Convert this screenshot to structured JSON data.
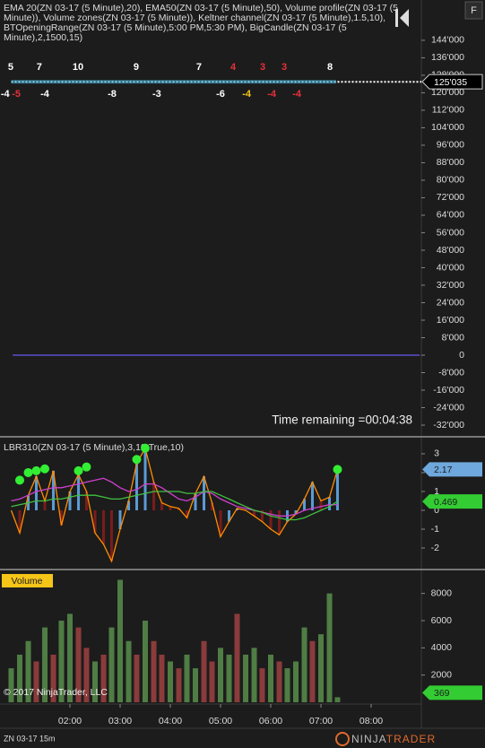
{
  "window": {
    "button": "F",
    "instrument": "ZN 03-17 15m",
    "logo_left": "NINJA",
    "logo_right": "TRADER"
  },
  "chart_data": [
    {
      "type": "line",
      "title_lines": [
        "EMA 20(ZN 03-17 (5 Minute),20), EMA50(ZN 03-17 (5 Minute),50), Volume profile(ZN 03-17 (5",
        "Minute)), Volume zones(ZN 03-17 (5 Minute)), Keltner channel(ZN 03-17 (5 Minute),1.5,10),",
        "BTOpeningRange(ZN 03-17 (5 Minute),5:00 PM,5:30 PM), BigCandle(ZN 03-17 (5",
        "Minute),2,1500,15)"
      ],
      "annotation": "Time remaining =00:04:38",
      "xlim": [
        0.607,
        9
      ],
      "ylim": [
        -36500,
        161600
      ],
      "yticks": [
        {
          "value": 144000,
          "label": "144'000"
        },
        {
          "value": 136000,
          "label": "136'000"
        },
        {
          "value": 128000,
          "label": "128'000"
        },
        {
          "value": 120000,
          "label": "120'000"
        },
        {
          "value": 112000,
          "label": "112'000"
        },
        {
          "value": 104000,
          "label": "104'000"
        },
        {
          "value": 96000,
          "label": "96'000"
        },
        {
          "value": 88000,
          "label": "88'000"
        },
        {
          "value": 80000,
          "label": "80'000"
        },
        {
          "value": 72000,
          "label": "72'000"
        },
        {
          "value": 64000,
          "label": "64'000"
        },
        {
          "value": 56000,
          "label": "56'000"
        },
        {
          "value": 48000,
          "label": "48'000"
        },
        {
          "value": 40000,
          "label": "40'000"
        },
        {
          "value": 32000,
          "label": "32'000"
        },
        {
          "value": 24000,
          "label": "24'000"
        },
        {
          "value": 16000,
          "label": "16'000"
        },
        {
          "value": 8000,
          "label": "8'000"
        },
        0,
        {
          "value": -8000,
          "label": "-8'000"
        },
        {
          "value": -16000,
          "label": "-16'000"
        },
        {
          "value": -24000,
          "label": "-24'000"
        },
        {
          "value": -32000,
          "label": "-32'000"
        }
      ],
      "series": [
        {
          "color": "#ffffff",
          "x": [
            0.83,
            9
          ],
          "values": [
            125035,
            125035
          ],
          "last_label": "125'035"
        },
        {
          "color": "#5a4fcf",
          "x": [
            0.86,
            8.97
          ],
          "values": [
            0,
            0
          ]
        }
      ],
      "buy_counts": {
        "x": [
          0.82,
          1.39,
          2.16,
          3.32,
          4.57,
          5.25,
          5.84,
          6.27,
          7.18
        ],
        "values": [
          5,
          7,
          10,
          9,
          7,
          4,
          3,
          3,
          8
        ],
        "colors": [
          "#ffffff",
          "#ffffff",
          "#ffffff",
          "#ffffff",
          "#ffffff",
          "#e8303a",
          "#e8303a",
          "#e8303a",
          "#ffffff"
        ]
      },
      "sell_counts": {
        "x": [
          0.71,
          0.93,
          1.5,
          2.84,
          3.73,
          5.0,
          5.52,
          6.02,
          6.52
        ],
        "values": [
          -4,
          -5,
          -4,
          -8,
          -3,
          -6,
          -4,
          -4,
          -4
        ],
        "colors": [
          "#ffffff",
          "#e8303a",
          "#ffffff",
          "#ffffff",
          "#ffffff",
          "#ffffff",
          "#f5c518",
          "#e8303a",
          "#e8303a"
        ]
      }
    },
    {
      "type": "line",
      "title": "LBR310(ZN 03-17 (5 Minute),3,10,True,10)",
      "xlim": [
        0.607,
        9
      ],
      "ylim": [
        -3,
        3.76
      ],
      "yticks": [
        3,
        2,
        1,
        0,
        -1,
        -2
      ],
      "x": [
        0.83,
        1,
        1.17,
        1.33,
        1.5,
        1.67,
        1.83,
        2,
        2.17,
        2.33,
        2.5,
        2.67,
        2.83,
        3,
        3.17,
        3.33,
        3.5,
        3.67,
        3.83,
        4,
        4.17,
        4.33,
        4.5,
        4.67,
        4.83,
        5,
        5.17,
        5.33,
        5.5,
        5.67,
        5.83,
        6,
        6.17,
        6.33,
        6.5,
        6.67,
        6.83,
        7,
        7.17,
        7.33
      ],
      "series": [
        {
          "color": "#ff8c00",
          "values": [
            0,
            -1.2,
            0.8,
            1.8,
            0.5,
            2.1,
            -0.8,
            1,
            1.9,
            1,
            -1.2,
            -1.8,
            -2.7,
            -1,
            0.5,
            2.5,
            3.3,
            1.5,
            0.4,
            0.2,
            0.1,
            -0.4,
            0.9,
            1.8,
            0.4,
            -1.4,
            -0.6,
            0.1,
            0,
            -0.3,
            -0.6,
            -1,
            -1.3,
            -0.6,
            -0.2,
            0.6,
            1.5,
            0.5,
            0.7,
            2.17
          ]
        },
        {
          "color": "#d040d0",
          "values": [
            0.5,
            0.6,
            0.8,
            1,
            1.1,
            1.2,
            1.2,
            1.3,
            1.4,
            1.5,
            1.6,
            1.7,
            1.5,
            1.2,
            1,
            1.1,
            1.4,
            1.4,
            1.2,
            0.9,
            0.6,
            0.5,
            0.7,
            1,
            0.9,
            0.6,
            0.4,
            0.2,
            0.1,
            0,
            -0.1,
            -0.2,
            -0.3,
            -0.3,
            -0.2,
            0,
            0.1,
            0.2,
            0.3,
            0.3
          ]
        },
        {
          "color": "#40c040",
          "values": [
            0.2,
            0.3,
            0.4,
            0.5,
            0.5,
            0.6,
            0.6,
            0.7,
            0.8,
            0.8,
            0.8,
            0.7,
            0.6,
            0.6,
            0.7,
            0.8,
            0.9,
            1,
            1,
            1,
            1,
            0.9,
            0.9,
            1,
            1,
            0.8,
            0.6,
            0.4,
            0.2,
            0,
            -0.1,
            -0.3,
            -0.4,
            -0.5,
            -0.5,
            -0.4,
            -0.2,
            0,
            0.2,
            0.469
          ]
        }
      ],
      "dots": {
        "color": "#33ee33",
        "x": [
          1,
          1.17,
          1.33,
          1.5,
          2.17,
          2.33,
          3.33,
          3.5,
          7.33
        ],
        "values": [
          1.6,
          2,
          2.1,
          2.2,
          2.1,
          2.3,
          2.7,
          3.3,
          2.17
        ]
      }
    },
    {
      "type": "bar",
      "title": "Volume",
      "copyright": "© 2017 NinjaTrader, LLC",
      "xlim": [
        0.607,
        9
      ],
      "ylim": [
        0,
        9560
      ],
      "yticks": [
        8000,
        6000,
        4000,
        2000
      ],
      "xticks": [
        {
          "value": 2,
          "label": "02:00"
        },
        {
          "value": 3,
          "label": "03:00"
        },
        {
          "value": 4,
          "label": "04:00"
        },
        {
          "value": 5,
          "label": "05:00"
        },
        {
          "value": 6,
          "label": "06:00"
        },
        {
          "value": 7,
          "label": "07:00"
        },
        {
          "value": 8,
          "label": "08:00"
        }
      ],
      "x": [
        0.83,
        1,
        1.17,
        1.33,
        1.5,
        1.67,
        1.83,
        2,
        2.17,
        2.33,
        2.5,
        2.67,
        2.83,
        3,
        3.17,
        3.33,
        3.5,
        3.67,
        3.83,
        4,
        4.17,
        4.33,
        4.5,
        4.67,
        4.83,
        5,
        5.17,
        5.33,
        5.5,
        5.67,
        5.83,
        6,
        6.17,
        6.33,
        6.5,
        6.67,
        6.83,
        7,
        7.17,
        7.33
      ],
      "values": [
        2500,
        3500,
        4500,
        3000,
        5500,
        3500,
        6000,
        6500,
        5500,
        4000,
        3000,
        3500,
        5500,
        9000,
        4500,
        3500,
        6000,
        4500,
        3500,
        3000,
        2500,
        3500,
        2500,
        4500,
        3000,
        4000,
        3500,
        6500,
        3500,
        4000,
        2500,
        3500,
        3000,
        2500,
        3000,
        5500,
        4500,
        5000,
        8000,
        369
      ],
      "colors": [
        "#4f7d44",
        "#4f7d44",
        "#4f7d44",
        "#8a3b3b",
        "#4f7d44",
        "#8a3b3b",
        "#4f7d44",
        "#4f7d44",
        "#8a3b3b",
        "#8a3b3b",
        "#4f7d44",
        "#8a3b3b",
        "#4f7d44",
        "#4f7d44",
        "#4f7d44",
        "#8a3b3b",
        "#4f7d44",
        "#8a3b3b",
        "#8a3b3b",
        "#4f7d44",
        "#8a3b3b",
        "#4f7d44",
        "#4f7d44",
        "#8a3b3b",
        "#8a3b3b",
        "#4f7d44",
        "#4f7d44",
        "#8a3b3b",
        "#4f7d44",
        "#4f7d44",
        "#8a3b3b",
        "#4f7d44",
        "#8a3b3b",
        "#4f7d44",
        "#4f7d44",
        "#4f7d44",
        "#8a3b3b",
        "#4f7d44",
        "#4f7d44",
        "#4f7d44"
      ]
    }
  ]
}
